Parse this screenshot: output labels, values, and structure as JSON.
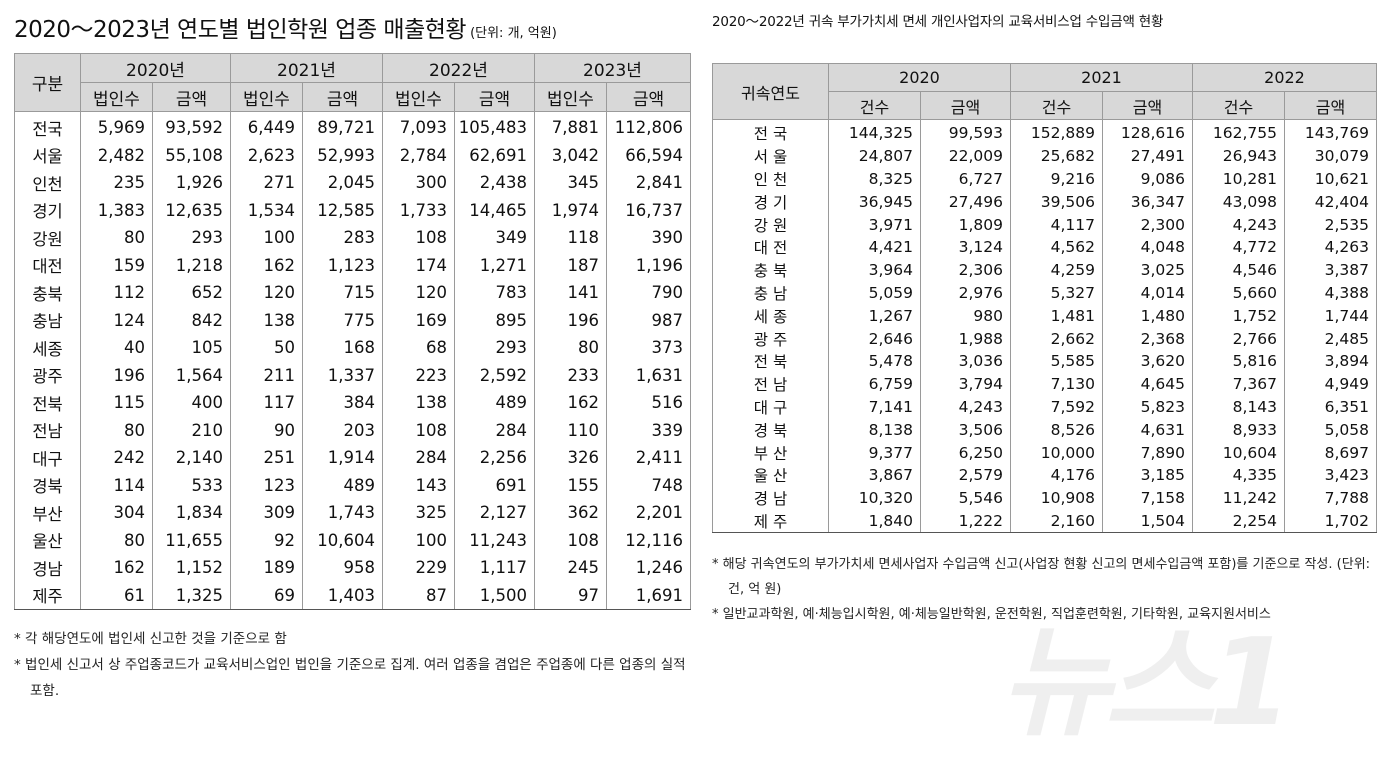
{
  "left": {
    "title": "2020～2023년 연도별 법인학원 업종 매출현황",
    "unit": "(단위: 개, 억원)",
    "header_region": "구분",
    "years": [
      "2020년",
      "2021년",
      "2022년",
      "2023년"
    ],
    "sub": [
      "법인수",
      "금액"
    ],
    "rows": [
      [
        "전국",
        "5,969",
        "93,592",
        "6,449",
        "89,721",
        "7,093",
        "105,483",
        "7,881",
        "112,806"
      ],
      [
        "서울",
        "2,482",
        "55,108",
        "2,623",
        "52,993",
        "2,784",
        "62,691",
        "3,042",
        "66,594"
      ],
      [
        "인천",
        "235",
        "1,926",
        "271",
        "2,045",
        "300",
        "2,438",
        "345",
        "2,841"
      ],
      [
        "경기",
        "1,383",
        "12,635",
        "1,534",
        "12,585",
        "1,733",
        "14,465",
        "1,974",
        "16,737"
      ],
      [
        "강원",
        "80",
        "293",
        "100",
        "283",
        "108",
        "349",
        "118",
        "390"
      ],
      [
        "대전",
        "159",
        "1,218",
        "162",
        "1,123",
        "174",
        "1,271",
        "187",
        "1,196"
      ],
      [
        "충북",
        "112",
        "652",
        "120",
        "715",
        "120",
        "783",
        "141",
        "790"
      ],
      [
        "충남",
        "124",
        "842",
        "138",
        "775",
        "169",
        "895",
        "196",
        "987"
      ],
      [
        "세종",
        "40",
        "105",
        "50",
        "168",
        "68",
        "293",
        "80",
        "373"
      ],
      [
        "광주",
        "196",
        "1,564",
        "211",
        "1,337",
        "223",
        "2,592",
        "233",
        "1,631"
      ],
      [
        "전북",
        "115",
        "400",
        "117",
        "384",
        "138",
        "489",
        "162",
        "516"
      ],
      [
        "전남",
        "80",
        "210",
        "90",
        "203",
        "108",
        "284",
        "110",
        "339"
      ],
      [
        "대구",
        "242",
        "2,140",
        "251",
        "1,914",
        "284",
        "2,256",
        "326",
        "2,411"
      ],
      [
        "경북",
        "114",
        "533",
        "123",
        "489",
        "143",
        "691",
        "155",
        "748"
      ],
      [
        "부산",
        "304",
        "1,834",
        "309",
        "1,743",
        "325",
        "2,127",
        "362",
        "2,201"
      ],
      [
        "울산",
        "80",
        "11,655",
        "92",
        "10,604",
        "100",
        "11,243",
        "108",
        "12,116"
      ],
      [
        "경남",
        "162",
        "1,152",
        "189",
        "958",
        "229",
        "1,117",
        "245",
        "1,246"
      ],
      [
        "제주",
        "61",
        "1,325",
        "69",
        "1,403",
        "87",
        "1,500",
        "97",
        "1,691"
      ]
    ],
    "notes": [
      "* 각 해당연도에 법인세 신고한 것을 기준으로 함",
      "* 법인세 신고서 상 주업종코드가 교육서비스업인 법인을 기준으로 집계. 여러 업종을 겸업은 주업종에 다른 업종의 실적 포함."
    ]
  },
  "right": {
    "title": "2020～2022년 귀속 부가가치세 면세 개인사업자의 교육서비스업 수입금액 현황",
    "header_region": "귀속연도",
    "years": [
      "2020",
      "2021",
      "2022"
    ],
    "sub": [
      "건수",
      "금액"
    ],
    "rows": [
      [
        "전 국",
        "144,325",
        "99,593",
        "152,889",
        "128,616",
        "162,755",
        "143,769"
      ],
      [
        "서 울",
        "24,807",
        "22,009",
        "25,682",
        "27,491",
        "26,943",
        "30,079"
      ],
      [
        "인 천",
        "8,325",
        "6,727",
        "9,216",
        "9,086",
        "10,281",
        "10,621"
      ],
      [
        "경 기",
        "36,945",
        "27,496",
        "39,506",
        "36,347",
        "43,098",
        "42,404"
      ],
      [
        "강 원",
        "3,971",
        "1,809",
        "4,117",
        "2,300",
        "4,243",
        "2,535"
      ],
      [
        "대 전",
        "4,421",
        "3,124",
        "4,562",
        "4,048",
        "4,772",
        "4,263"
      ],
      [
        "충 북",
        "3,964",
        "2,306",
        "4,259",
        "3,025",
        "4,546",
        "3,387"
      ],
      [
        "충 남",
        "5,059",
        "2,976",
        "5,327",
        "4,014",
        "5,660",
        "4,388"
      ],
      [
        "세 종",
        "1,267",
        "980",
        "1,481",
        "1,480",
        "1,752",
        "1,744"
      ],
      [
        "광 주",
        "2,646",
        "1,988",
        "2,662",
        "2,368",
        "2,766",
        "2,485"
      ],
      [
        "전 북",
        "5,478",
        "3,036",
        "5,585",
        "3,620",
        "5,816",
        "3,894"
      ],
      [
        "전 남",
        "6,759",
        "3,794",
        "7,130",
        "4,645",
        "7,367",
        "4,949"
      ],
      [
        "대 구",
        "7,141",
        "4,243",
        "7,592",
        "5,823",
        "8,143",
        "6,351"
      ],
      [
        "경 북",
        "8,138",
        "3,506",
        "8,526",
        "4,631",
        "8,933",
        "5,058"
      ],
      [
        "부 산",
        "9,377",
        "6,250",
        "10,000",
        "7,890",
        "10,604",
        "8,697"
      ],
      [
        "울 산",
        "3,867",
        "2,579",
        "4,176",
        "3,185",
        "4,335",
        "3,423"
      ],
      [
        "경 남",
        "10,320",
        "5,546",
        "10,908",
        "7,158",
        "11,242",
        "7,788"
      ],
      [
        "제 주",
        "1,840",
        "1,222",
        "2,160",
        "1,504",
        "2,254",
        "1,702"
      ]
    ],
    "notes": [
      "* 해당 귀속연도의 부가가치세 면세사업자 수입금액 신고(사업장 현황 신고의 면세수입금액 포함)를 기준으로 작성. (단위: 건, 억 원)",
      "* 일반교과학원, 예·체능입시학원, 예·체능일반학원, 운전학원, 직업훈련학원, 기타학원, 교육지원서비스"
    ]
  },
  "watermark": "뉴스1"
}
